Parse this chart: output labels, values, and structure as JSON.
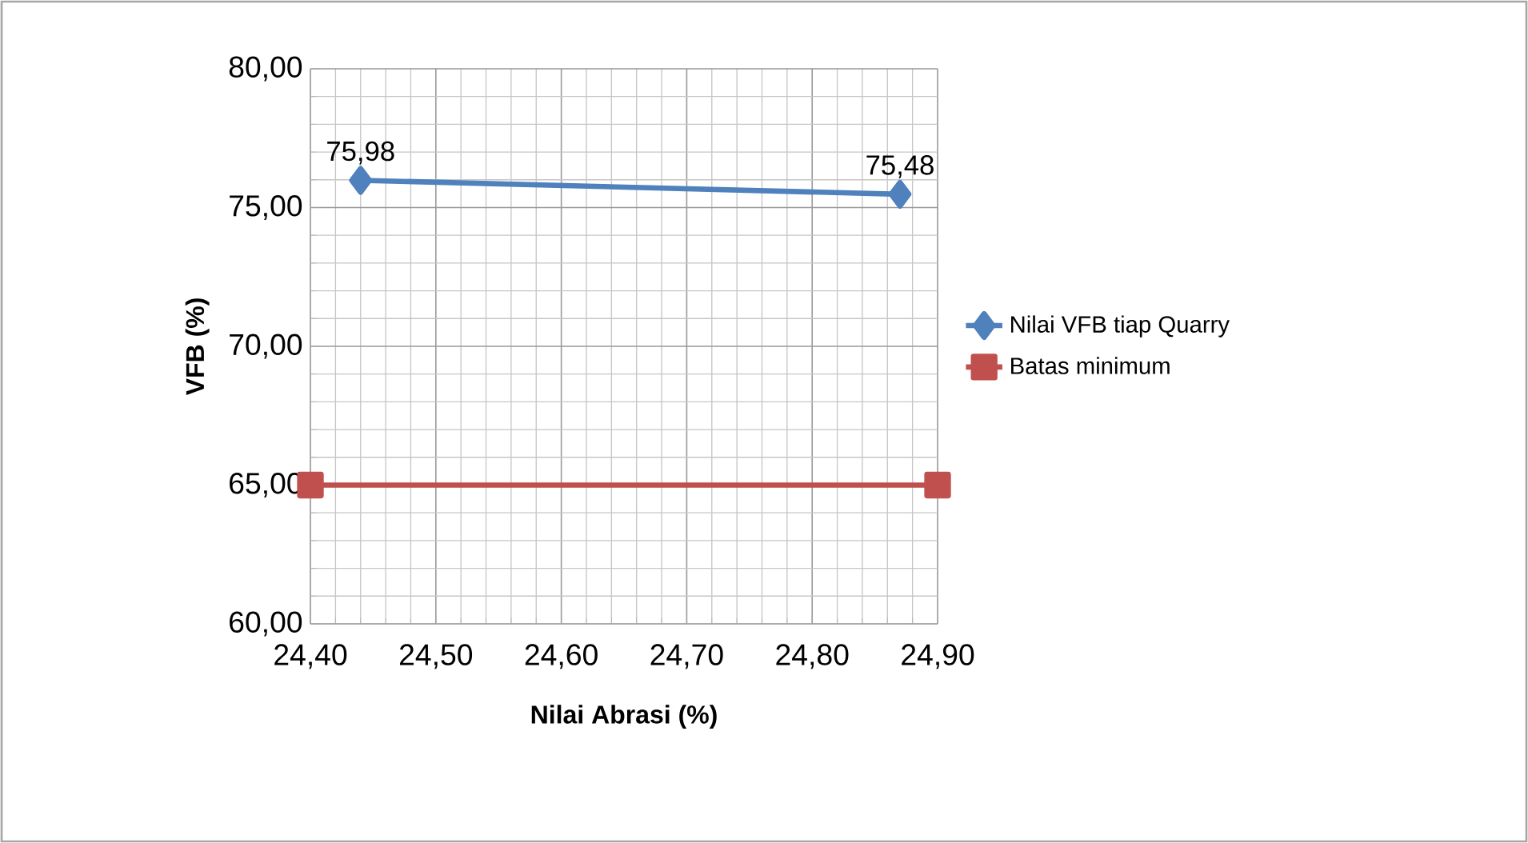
{
  "chart_data": {
    "type": "line",
    "xlabel": "Nilai Abrasi (%)",
    "ylabel": "VFB (%)",
    "xlim": [
      24.4,
      24.9
    ],
    "ylim": [
      60,
      80
    ],
    "xticks": [
      {
        "value": 24.4,
        "label": "24,40"
      },
      {
        "value": 24.5,
        "label": "24,50"
      },
      {
        "value": 24.6,
        "label": "24,60"
      },
      {
        "value": 24.7,
        "label": "24,70"
      },
      {
        "value": 24.8,
        "label": "24,80"
      },
      {
        "value": 24.9,
        "label": "24,90"
      }
    ],
    "yticks": [
      {
        "value": 60,
        "label": "60,00"
      },
      {
        "value": 65,
        "label": "65,00"
      },
      {
        "value": 70,
        "label": "70,00"
      },
      {
        "value": 75,
        "label": "75,00"
      },
      {
        "value": 80,
        "label": "80,00"
      }
    ],
    "grid": true,
    "legend": "right",
    "series": [
      {
        "name": "Nilai VFB tiap Quarry",
        "color": "#4f81bd",
        "marker": "diamond",
        "x": [
          24.44,
          24.87
        ],
        "values": [
          75.98,
          75.48
        ],
        "value_labels": [
          "75,98",
          "75,48"
        ]
      },
      {
        "name": "Batas minimum",
        "color": "#c0504d",
        "marker": "square",
        "x": [
          24.4,
          24.9
        ],
        "values": [
          65,
          65
        ]
      }
    ]
  }
}
